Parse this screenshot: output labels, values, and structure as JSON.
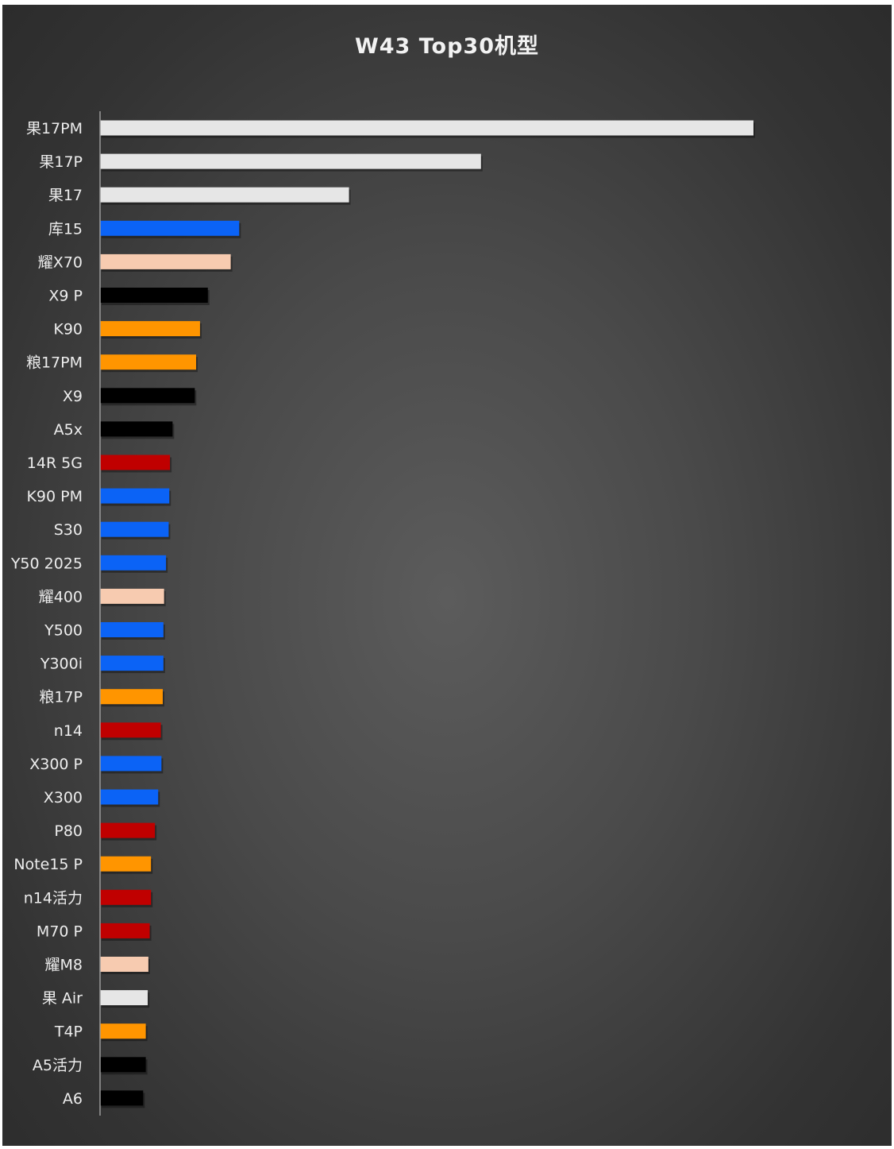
{
  "chart_data": {
    "type": "bar",
    "orientation": "horizontal",
    "title": "W43 Top30机型",
    "xlabel": "",
    "ylabel": "",
    "xlim": [
      0,
      100
    ],
    "grid": false,
    "legend": "none",
    "categories": [
      "果17PM",
      "果17P",
      "果17",
      "库15",
      "耀X70",
      "X9 P",
      "K90",
      "粮17PM",
      "X9",
      "A5x",
      "14R 5G",
      "K90 PM",
      "S30",
      "Y50 2025",
      "耀400",
      "Y500",
      "Y300i",
      "粮17P",
      "n14",
      "X300 P",
      "X300",
      "P80",
      "Note15 P",
      "n14活力",
      "M70 P",
      "耀M8",
      "果 Air",
      "T4P",
      "A5活力",
      "A6"
    ],
    "values": [
      100,
      58.3,
      38.1,
      21.3,
      20.0,
      16.5,
      15.3,
      14.7,
      14.5,
      11.1,
      10.7,
      10.6,
      10.5,
      10.1,
      9.8,
      9.7,
      9.7,
      9.6,
      9.3,
      9.4,
      8.9,
      8.4,
      7.8,
      7.8,
      7.6,
      7.4,
      7.3,
      7.0,
      7.0,
      6.6
    ],
    "colors": [
      "#e6e6e6",
      "#e6e6e6",
      "#e6e6e6",
      "#0b63f6",
      "#f7cbb0",
      "#000000",
      "#ff9500",
      "#ff9500",
      "#000000",
      "#000000",
      "#c00000",
      "#0b63f6",
      "#0b63f6",
      "#0b63f6",
      "#f7cbb0",
      "#0b63f6",
      "#0b63f6",
      "#ff9500",
      "#c00000",
      "#0b63f6",
      "#0b63f6",
      "#c00000",
      "#ff9500",
      "#c00000",
      "#c00000",
      "#f7cbb0",
      "#e6e6e6",
      "#ff9500",
      "#000000",
      "#000000"
    ]
  }
}
